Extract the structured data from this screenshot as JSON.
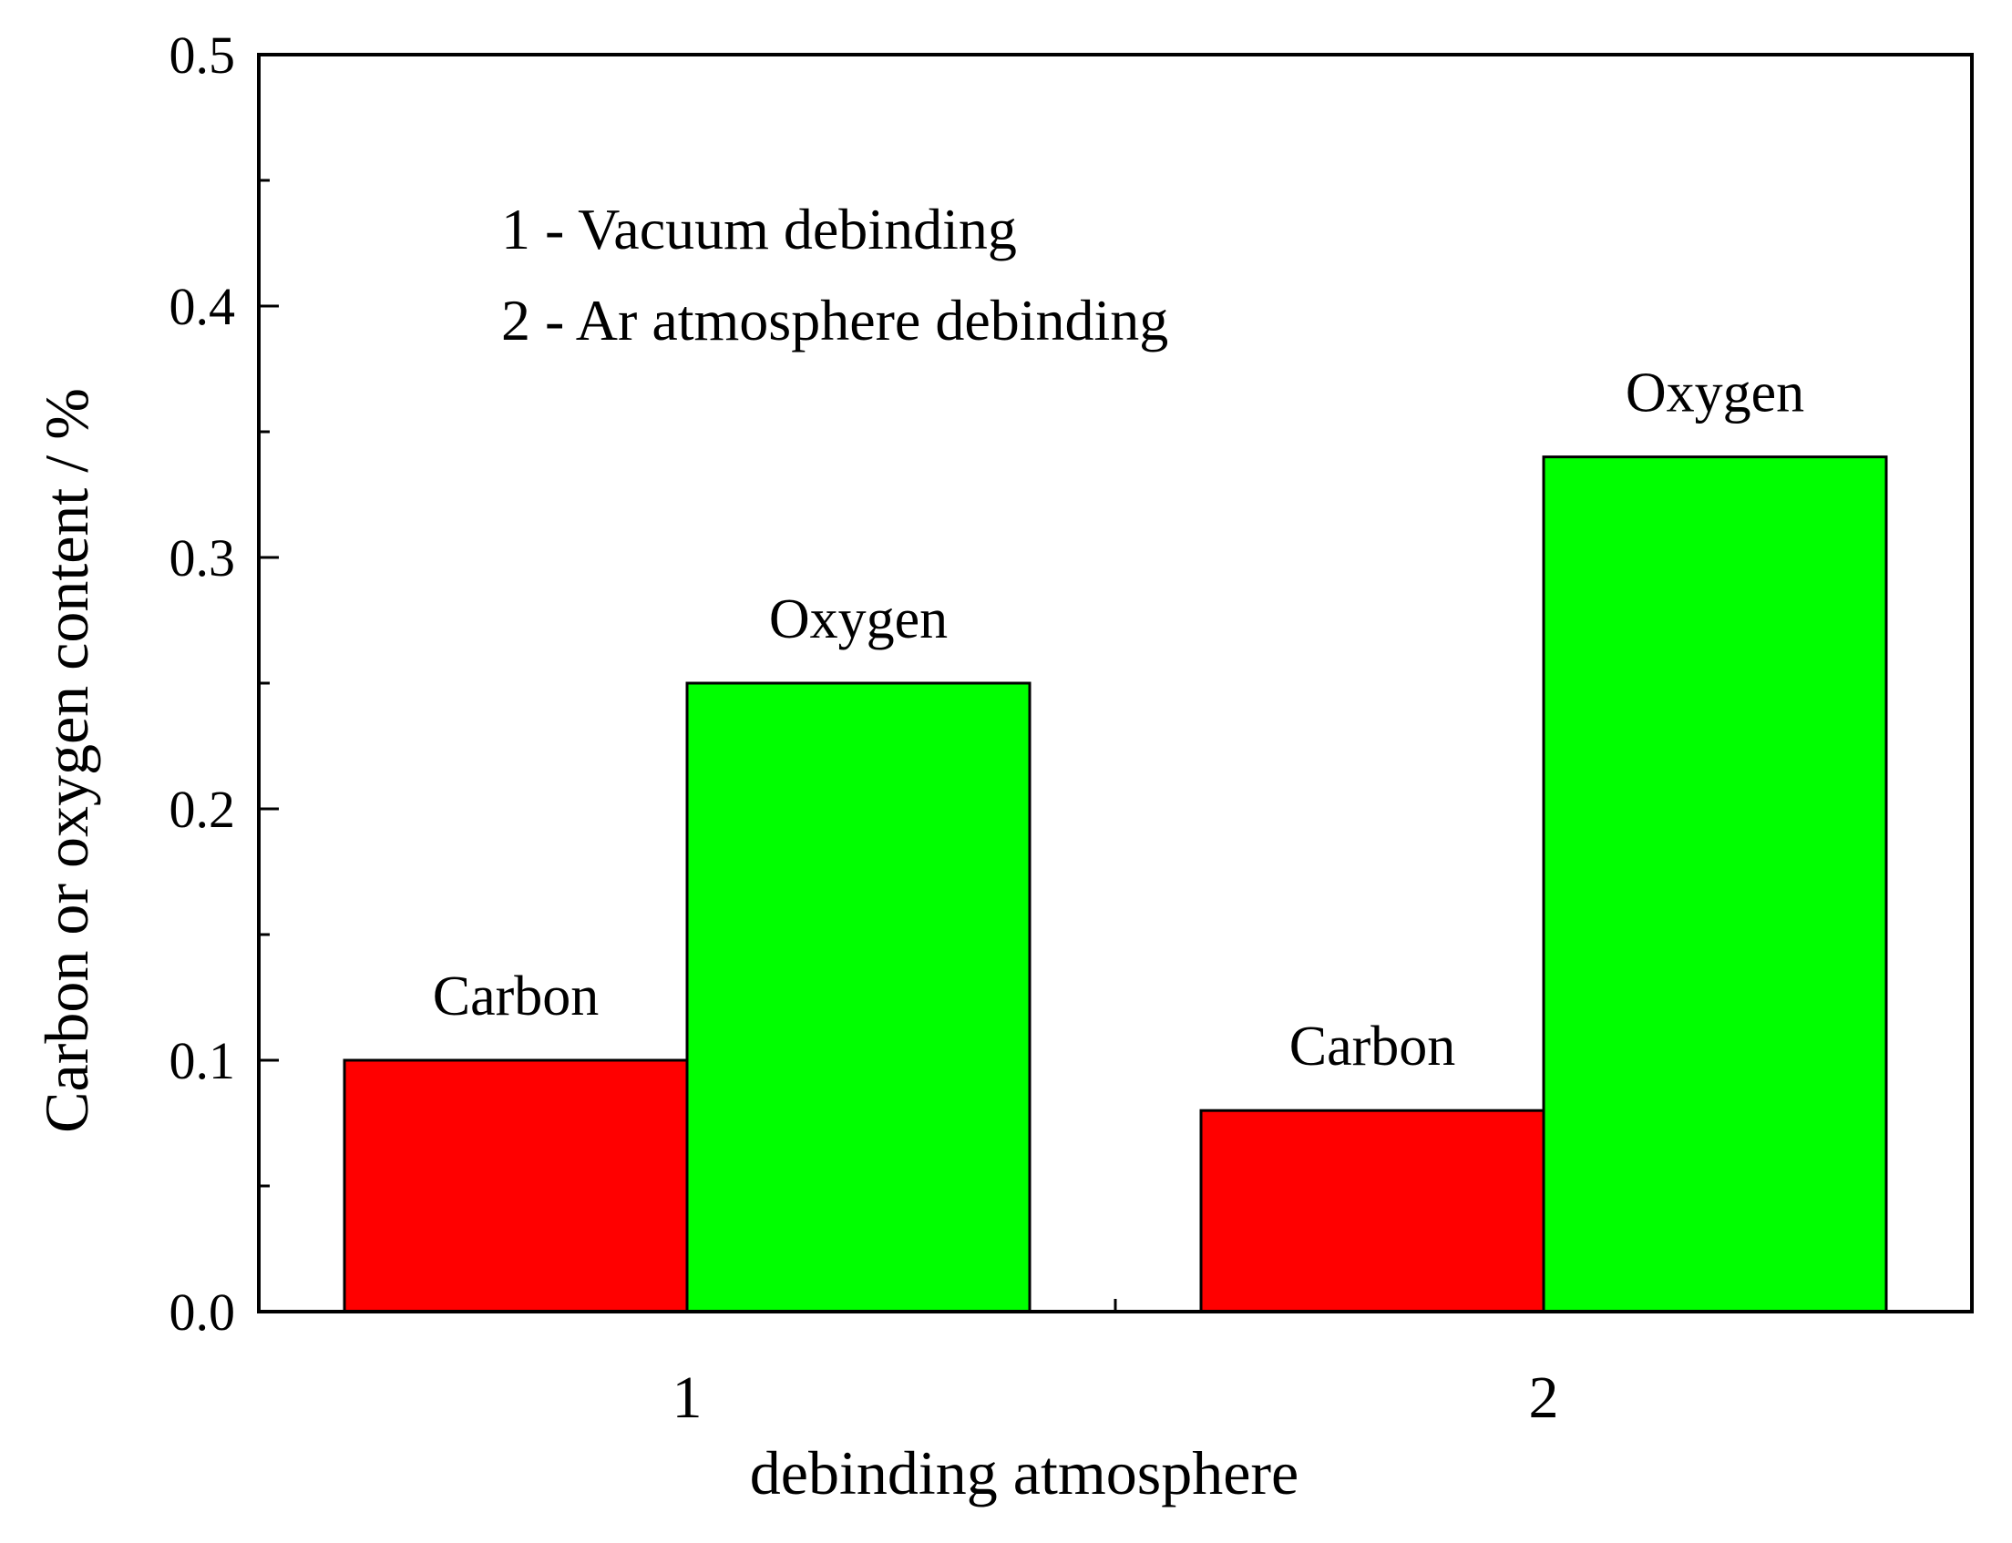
{
  "chart_data": {
    "type": "bar",
    "categories": [
      "1",
      "2"
    ],
    "series": [
      {
        "name": "Carbon",
        "values": [
          0.1,
          0.08
        ],
        "color": "#ff0000"
      },
      {
        "name": "Oxygen",
        "values": [
          0.25,
          0.34
        ],
        "color": "#00ff00"
      }
    ],
    "xlabel": "debinding atmosphere",
    "ylabel": "Carbon or oxygen content / %",
    "ylim": [
      0,
      0.5
    ],
    "yticks": [
      "0.0",
      "0.1",
      "0.2",
      "0.3",
      "0.4",
      "0.5"
    ],
    "annotations": [
      "1 - Vacuum debinding",
      "2 - Ar atmosphere debinding"
    ],
    "grid": false,
    "legend": "none"
  }
}
